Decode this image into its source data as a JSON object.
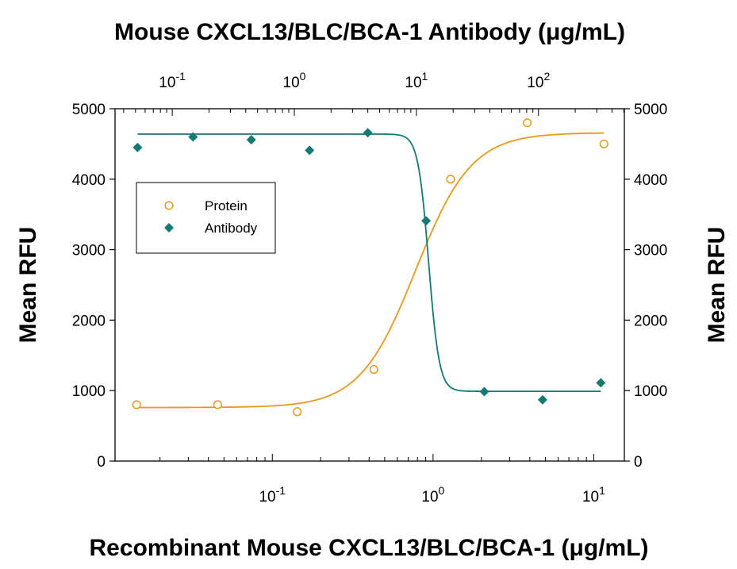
{
  "chart_data": {
    "type": "scatter",
    "top_title": "Mouse CXCL13/BLC/BCA-1 Antibody (μg/mL)",
    "xlabel": "Recombinant Mouse CXCL13/BLC/BCA-1 (μg/mL)",
    "ylabel_left": "Mean RFU",
    "ylabel_right": "Mean RFU",
    "ylim": [
      0,
      5000
    ],
    "yticks": [
      0,
      1000,
      2000,
      3000,
      4000,
      5000
    ],
    "x_bottom": {
      "scale": "log",
      "range": [
        0.0105,
        15.5
      ],
      "ticks": [
        {
          "value": 0.1,
          "base": "10",
          "exp": "-1"
        },
        {
          "value": 1,
          "base": "10",
          "exp": "0"
        },
        {
          "value": 10,
          "base": "10",
          "exp": "1"
        }
      ]
    },
    "x_top": {
      "scale": "log",
      "range": [
        0.034,
        505
      ],
      "ticks": [
        {
          "value": 0.1,
          "base": "10",
          "exp": "-1"
        },
        {
          "value": 1,
          "base": "10",
          "exp": "0"
        },
        {
          "value": 10,
          "base": "10",
          "exp": "1"
        },
        {
          "value": 100,
          "base": "10",
          "exp": "2"
        }
      ]
    },
    "grid": false,
    "legend_position": "top-left",
    "series": [
      {
        "name": "Protein",
        "axis": "bottom",
        "marker": "open-circle",
        "color": "#e89a1e",
        "x": [
          0.0143,
          0.0457,
          0.1429,
          0.4286,
          1.2857,
          3.8571,
          11.57
        ],
        "y": [
          800,
          800,
          700,
          1300,
          4000,
          4800,
          4500
        ],
        "fit": {
          "bottom": 760,
          "top": 4660,
          "ec50": 0.78,
          "hill": 2.5
        }
      },
      {
        "name": "Antibody",
        "axis": "top",
        "marker": "filled-diamond",
        "color": "#127a72",
        "x": [
          0.052,
          0.148,
          0.444,
          1.333,
          4.0,
          12.0,
          36.0,
          108.0,
          324.0
        ],
        "y": [
          4450,
          4600,
          4560,
          4410,
          4660,
          3410,
          985,
          870,
          1110
        ],
        "fit": {
          "bottom": 990,
          "top": 4640,
          "ic50": 12.6,
          "hill": 10
        }
      }
    ]
  }
}
